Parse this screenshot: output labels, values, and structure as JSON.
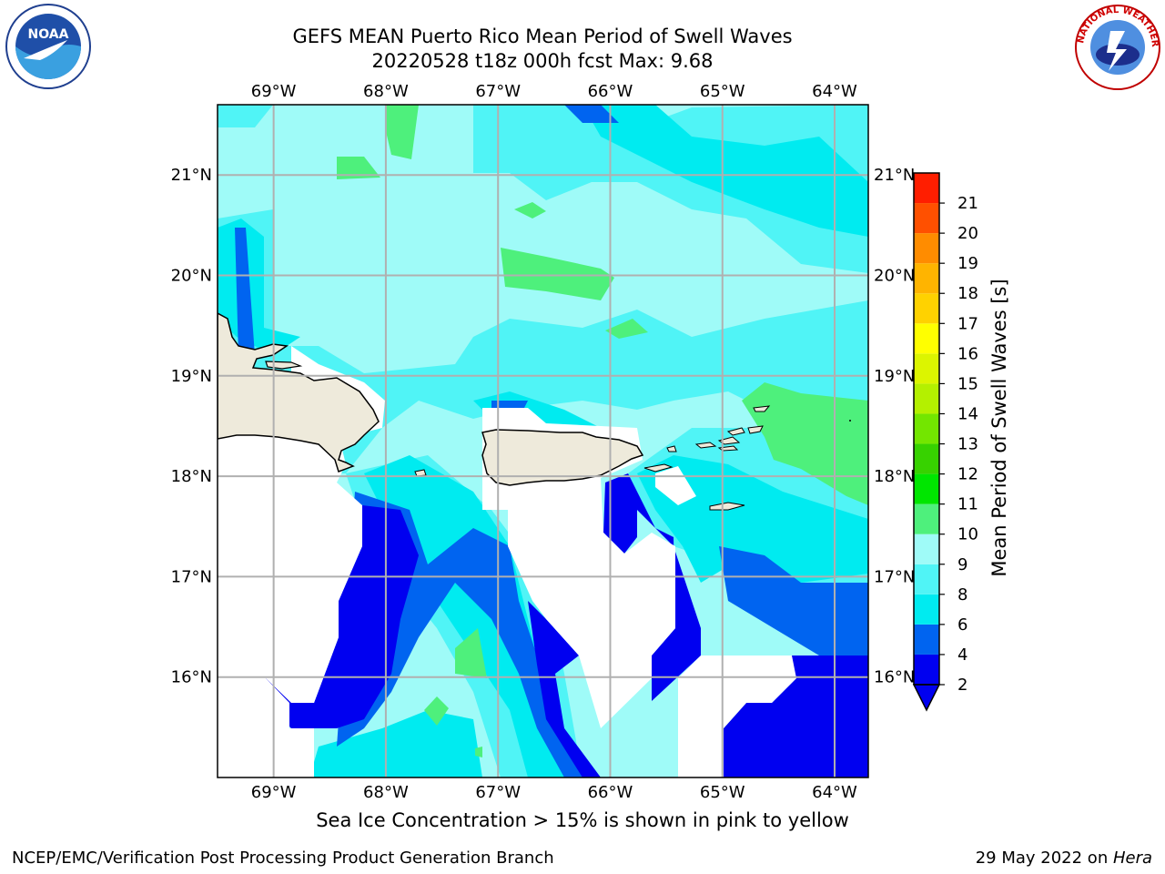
{
  "title": {
    "line1": "GEFS MEAN Puerto Rico Mean Period of Swell Waves",
    "line2": "20220528 t18z 000h fcst   Max: 9.68"
  },
  "map": {
    "lon_labels": [
      "69°W",
      "68°W",
      "67°W",
      "66°W",
      "65°W",
      "64°W"
    ],
    "lat_labels": [
      "21°N",
      "20°N",
      "19°N",
      "18°N",
      "17°N",
      "16°N"
    ],
    "lon_range": [
      -69.5,
      -63.7
    ],
    "lat_range": [
      15.0,
      21.7
    ],
    "land_color": "#eeeadb",
    "masked_color": "#ffffff"
  },
  "colorbar": {
    "title": "Mean Period of Swell Waves [s]",
    "tick_labels": [
      "2",
      "4",
      "6",
      "8",
      "9",
      "10",
      "11",
      "12",
      "13",
      "14",
      "15",
      "16",
      "17",
      "18",
      "19",
      "20",
      "21"
    ],
    "levels": [
      2,
      4,
      6,
      8,
      9,
      10,
      11,
      12,
      13,
      14,
      15,
      16,
      17,
      18,
      19,
      20,
      21
    ],
    "colors": [
      "#0000f0",
      "#0064f0",
      "#00ebf0",
      "#50f4f6",
      "#9ffbf8",
      "#4ef07c",
      "#00e600",
      "#37d200",
      "#73e600",
      "#b4f000",
      "#dcf500",
      "#ffff00",
      "#ffd200",
      "#ffb400",
      "#ff8c00",
      "#ff5000",
      "#ff1e00"
    ],
    "under_color": "#0000f0"
  },
  "note": "Sea Ice Concentration > 15% is shown in pink to yellow",
  "footer": {
    "left": "NCEP/EMC/Verification Post Processing Product Generation Branch",
    "date": "29 May 2022 on ",
    "machine": "Hera"
  },
  "logos": {
    "noaa_text": "NOAA",
    "nws_text": "NATIONAL WEATHER SERVICE"
  }
}
